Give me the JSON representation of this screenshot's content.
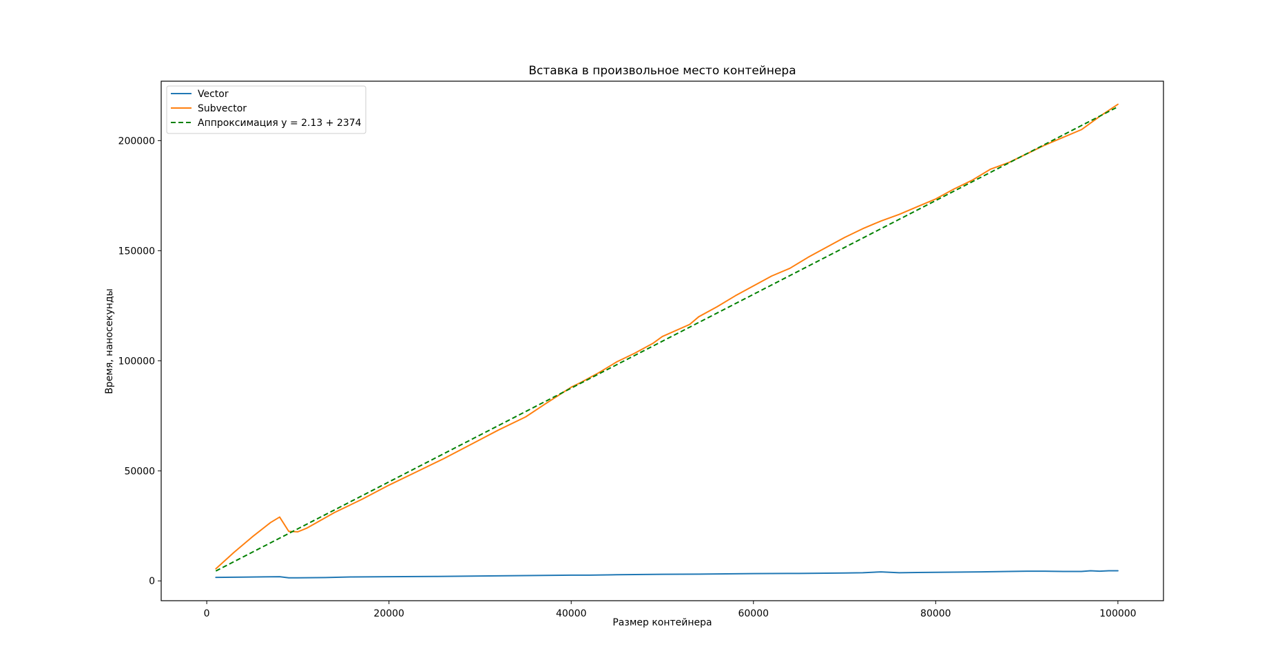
{
  "chart_data": {
    "type": "line",
    "title": "Вставка в произвольное место контейнера",
    "xlabel": "Размер контейнера",
    "ylabel": "Время, наносекунды",
    "xlim": [
      -5000,
      105000
    ],
    "ylim": [
      -9000,
      227000
    ],
    "xticks": [
      0,
      20000,
      40000,
      60000,
      80000,
      100000
    ],
    "xtick_labels": [
      "0",
      "20000",
      "40000",
      "60000",
      "80000",
      "100000"
    ],
    "yticks": [
      0,
      50000,
      100000,
      150000,
      200000
    ],
    "ytick_labels": [
      "0",
      "50000",
      "100000",
      "150000",
      "200000"
    ],
    "grid": false,
    "legend_position": "upper-left",
    "series": [
      {
        "name": "Vector",
        "color": "#1f77b4",
        "style": "solid",
        "x": [
          1000,
          4000,
          8000,
          9000,
          10000,
          13000,
          16000,
          20000,
          25000,
          30000,
          35000,
          40000,
          42000,
          45000,
          50000,
          55000,
          60000,
          65000,
          70000,
          72000,
          74000,
          76000,
          78000,
          80000,
          85000,
          88000,
          90000,
          92000,
          94000,
          96000,
          97000,
          98000,
          99000,
          100000
        ],
        "y": [
          1600,
          1700,
          1900,
          1400,
          1400,
          1500,
          1800,
          1900,
          2000,
          2200,
          2400,
          2600,
          2600,
          2800,
          3000,
          3100,
          3300,
          3400,
          3600,
          3700,
          4100,
          3700,
          3800,
          3900,
          4100,
          4300,
          4400,
          4400,
          4300,
          4300,
          4600,
          4400,
          4600,
          4600
        ]
      },
      {
        "name": "Subvector",
        "color": "#ff7f0e",
        "style": "solid",
        "x": [
          1000,
          3000,
          5000,
          7000,
          8000,
          9000,
          10000,
          11000,
          14000,
          17000,
          20000,
          23000,
          26000,
          29000,
          32000,
          35000,
          37000,
          40000,
          41000,
          43000,
          45000,
          47000,
          49000,
          50000,
          53000,
          54000,
          56000,
          58000,
          60000,
          62000,
          64000,
          66000,
          68000,
          70000,
          72000,
          74000,
          76000,
          78000,
          80000,
          82000,
          84000,
          86000,
          88000,
          90000,
          92000,
          94000,
          96000,
          98000,
          100000
        ],
        "y": [
          5500,
          13000,
          20000,
          26500,
          29000,
          22500,
          22300,
          24000,
          31000,
          37000,
          43500,
          49500,
          55500,
          62000,
          68500,
          74500,
          80000,
          88000,
          90000,
          94500,
          99500,
          103500,
          108000,
          111000,
          116500,
          120000,
          124500,
          129500,
          134000,
          138500,
          142000,
          147000,
          151500,
          156000,
          160000,
          163500,
          166500,
          170000,
          173500,
          178000,
          182000,
          187000,
          190000,
          194000,
          198000,
          201500,
          205000,
          211000,
          216500
        ]
      },
      {
        "name": "Аппроксимация y = 2.13 + 2374",
        "color": "#008000",
        "style": "dashed",
        "x": [
          1000,
          100000
        ],
        "y": [
          4504,
          215374
        ]
      }
    ]
  }
}
